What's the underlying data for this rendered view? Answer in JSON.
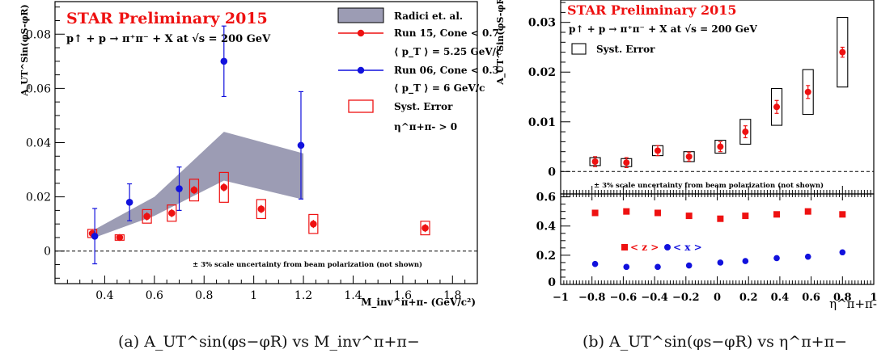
{
  "colors": {
    "red": "#ee1111",
    "blue": "#1111dd",
    "band": "#9c9cb4",
    "syst": "#ee1111",
    "black": "#000000"
  },
  "chart_data": [
    {
      "type": "scatter",
      "title": "STAR Preliminary 2015",
      "subtitle": "p↑ + p → π⁺π⁻ + X at √s = 200 GeV",
      "ylabel": "A_UT^Sin(φS-φR)",
      "xlabel": "M_inv^π+π- (GeV/c²)",
      "xlim": [
        0.2,
        1.9
      ],
      "ylim": [
        -0.012,
        0.092
      ],
      "x_ticks": [
        0.4,
        0.6,
        0.8,
        1.0,
        1.2,
        1.4,
        1.6,
        1.8
      ],
      "x_tick_labels": [
        "0.4",
        "0.6",
        "0.8",
        "1",
        "1.2",
        "1.4",
        "1.6",
        "1.8"
      ],
      "y_ticks": [
        0,
        0.02,
        0.04,
        0.06,
        0.08
      ],
      "y_tick_labels": [
        "0",
        "0.02",
        "0.04",
        "0.06",
        "0.08"
      ],
      "grid": false,
      "legend_position": "top-right",
      "legend": {
        "band_label": "Radici et. al.",
        "run15_label": "Run 15, Cone < 0.7",
        "run15_pt": "⟨ p_T ⟩ = 5.25 GeV/c",
        "run06_label": "Run 06, Cone < 0.3",
        "run06_pt": "⟨ p_T ⟩ = 6 GeV/c",
        "syst_label": "Syst. Error",
        "eta_cut": "η^π+π- > 0"
      },
      "annotation": "± 3% scale uncertainty from beam polarization (not shown)",
      "band": {
        "name": "Radici et. al.",
        "x": [
          0.36,
          0.6,
          0.88,
          1.2
        ],
        "upper": [
          0.008,
          0.02,
          0.044,
          0.036
        ],
        "lower": [
          0.005,
          0.013,
          0.026,
          0.019
        ]
      },
      "series": [
        {
          "name": "Run 15, Cone < 0.7",
          "x": [
            0.35,
            0.46,
            0.57,
            0.67,
            0.76,
            0.88,
            1.03,
            1.24,
            1.69
          ],
          "y": [
            0.0065,
            0.005,
            0.0128,
            0.014,
            0.0225,
            0.0235,
            0.0155,
            0.01,
            0.0085
          ],
          "stat_err": [
            0.001,
            0.001,
            0.0015,
            0.0015,
            0.0015,
            0.0015,
            0.0015,
            0.0015,
            0.0015
          ],
          "syst_err": [
            0.0015,
            0.001,
            0.0025,
            0.003,
            0.004,
            0.0055,
            0.0035,
            0.0035,
            0.0025
          ]
        },
        {
          "name": "Run 06, Cone < 0.3",
          "x": [
            0.36,
            0.5,
            0.7,
            0.88,
            1.19
          ],
          "y": [
            0.0055,
            0.018,
            0.023,
            0.07,
            0.039
          ],
          "stat_err": [
            0.0102,
            0.0068,
            0.008,
            0.013,
            0.0198
          ]
        }
      ],
      "caption": "(a) A_UT^sin(φs−φR) vs M_inv^π+π−"
    },
    {
      "type": "scatter",
      "title": "STAR Preliminary 2015",
      "subtitle": "p↑ + p → π⁺π⁻ + X at √s = 200 GeV",
      "ylabel": "A_UT^Sin(φS-φR)",
      "xlabel": "η^π+π-",
      "xlim": [
        -1,
        1
      ],
      "ylim": [
        -0.0045,
        0.0345
      ],
      "x_ticks": [
        -1,
        -0.8,
        -0.6,
        -0.4,
        -0.2,
        0,
        0.2,
        0.4,
        0.6,
        0.8,
        1
      ],
      "x_tick_labels": [
        "−1",
        "−0.8",
        "−0.6",
        "−0.4",
        "−0.2",
        "0",
        "0.2",
        "0.4",
        "0.6",
        "0.8",
        "1"
      ],
      "y_ticks": [
        0,
        0.01,
        0.02,
        0.03
      ],
      "y_tick_labels": [
        "0",
        "0.01",
        "0.02",
        "0.03"
      ],
      "grid": false,
      "legend_position": "top-left",
      "legend": {
        "syst_label": "Syst. Error"
      },
      "annotation": "± 3% scale uncertainty from beam polarization (not shown)",
      "series": [
        {
          "name": "",
          "x": [
            -0.78,
            -0.58,
            -0.38,
            -0.18,
            0.02,
            0.18,
            0.38,
            0.58,
            0.8
          ],
          "y": [
            0.002,
            0.0018,
            0.0042,
            0.003,
            0.005,
            0.008,
            0.013,
            0.016,
            0.024
          ],
          "stat_err": [
            0.001,
            0.001,
            0.001,
            0.0009,
            0.001,
            0.0012,
            0.0013,
            0.0013,
            0.001
          ],
          "syst_err": [
            0.0008,
            0.0008,
            0.001,
            0.001,
            0.0013,
            0.0025,
            0.0037,
            0.0045,
            0.007
          ]
        }
      ],
      "sub_panel": {
        "ylim": [
          0,
          0.62
        ],
        "y_ticks": [
          0.2,
          0.4,
          0.6
        ],
        "y_tick_labels": [
          "0.2",
          "0.4",
          "0.6"
        ],
        "z_label": "< z >",
        "x_label": "< x >",
        "z_values": [
          0.49,
          0.5,
          0.49,
          0.47,
          0.45,
          0.47,
          0.48,
          0.5,
          0.48
        ],
        "x_values": [
          0.14,
          0.12,
          0.12,
          0.13,
          0.15,
          0.16,
          0.18,
          0.19,
          0.22
        ]
      },
      "caption": "(b) A_UT^sin(φs−φR) vs η^π+π−"
    }
  ]
}
